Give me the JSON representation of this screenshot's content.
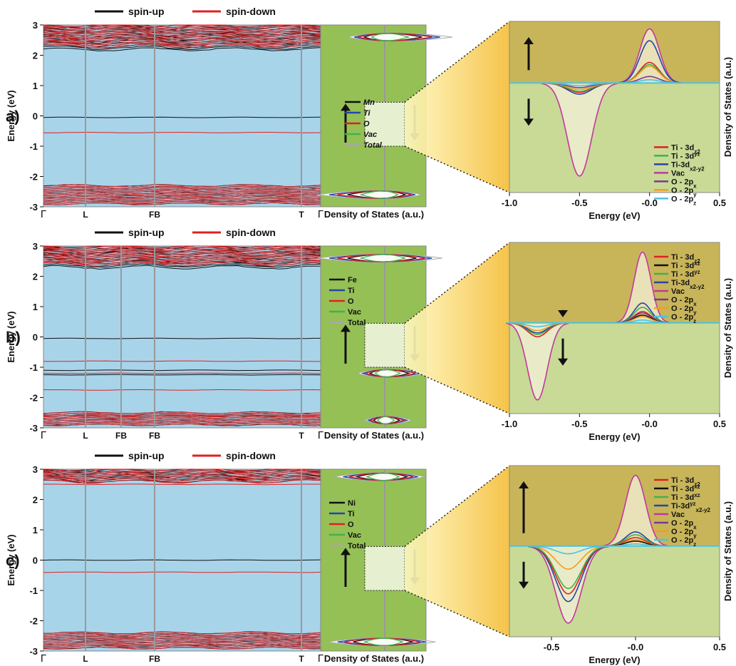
{
  "legend_top": {
    "spin_up": "spin-up",
    "spin_down": "spin-down"
  },
  "axis": {
    "band_ylabel": "Energy (eV)",
    "band_yticks": [
      "3",
      "2",
      "1",
      "0",
      "-1",
      "-2",
      "-3"
    ],
    "dos_xlabel": "Density of States (a.u.)",
    "zoom_xlabel": "Energy (eV)",
    "zoom_ylabel": "Density of States (a.u.)"
  },
  "colors": {
    "band_bg": "#a8d4ea",
    "dos_bg": "#95c055",
    "zoom_top": "#c8b55a",
    "zoom_bottom": "#c8da96",
    "spin_up": "#111111",
    "spin_down": "#e02020",
    "Mn": "#111111",
    "Fe": "#111111",
    "Ni": "#111111",
    "Ti": "#2546a8",
    "O": "#e02020",
    "Vac": "#3fb34a",
    "Total": "#a8a8a8",
    "Ti_3dz2": "#e02020",
    "Ti_3dxz": "#111111",
    "Ti_3dyz": "#3fb34a",
    "Ti_3dx2y2": "#2546a8",
    "Vac_p": "#c0399b",
    "O_2px": "#7a3a8c",
    "O_2py": "#f39c1f",
    "O_2pz": "#4cc3e0"
  },
  "chart_data": [
    {
      "panel": "a)",
      "type": "line",
      "subtype": "band_structure",
      "kpoints": [
        "Γ",
        "L",
        "FB",
        "T",
        "Γ"
      ],
      "ylim": [
        -3,
        3
      ],
      "ylabel": "Energy (eV)",
      "series": [
        {
          "name": "spin-up",
          "flat_bands_eV": [
            -0.05
          ],
          "valence_range_eV": [
            -2.9,
            -2.3
          ],
          "conduction_range_eV": [
            2.2,
            3.0
          ]
        },
        {
          "name": "spin-down",
          "flat_bands_eV": [
            -0.55
          ],
          "valence_range_eV": [
            -2.9,
            -2.3
          ],
          "conduction_range_eV": [
            2.3,
            3.0
          ]
        }
      ]
    },
    {
      "panel": "a)",
      "type": "area",
      "subtype": "total_dos",
      "xlabel": "Density of States (a.u.)",
      "legend": [
        {
          "key": "Mn",
          "label": "Mn"
        },
        {
          "key": "Ti",
          "label": "Ti"
        },
        {
          "key": "O",
          "label": "O"
        },
        {
          "key": "Vac",
          "label": "Vac"
        },
        {
          "key": "Total",
          "label": "Total"
        }
      ],
      "peaks": [
        {
          "energy_eV": 2.6,
          "up": 1.0,
          "down": 0.55
        },
        {
          "energy_eV": -2.6,
          "up": 0.55,
          "down": 1.0
        }
      ]
    },
    {
      "panel": "a)",
      "type": "area",
      "subtype": "projected_dos_zoom",
      "xlabel": "Energy (eV)",
      "ylabel": "Density of States (a.u.)",
      "xlim": [
        -1.0,
        0.5
      ],
      "xticks": [
        "-1.0",
        "-0.5",
        "-0.0",
        "0.5"
      ],
      "legend": [
        {
          "key": "Ti_3dz2",
          "base": "Ti - 3d",
          "sub": "z2"
        },
        {
          "key": "Ti_3dyz",
          "base": "Ti - 3d",
          "sup": "yz"
        },
        {
          "key": "Ti_3dx2y2",
          "base": "Ti-3d",
          "sub": "x2-y2"
        },
        {
          "key": "Vac_p",
          "base": "Vac"
        },
        {
          "key": "O_2px",
          "base": "O - 2p",
          "sub": "x"
        },
        {
          "key": "O_2py",
          "base": "O - 2p",
          "sub": "y"
        },
        {
          "key": "O_2pz",
          "base": "O - 2p",
          "sub": "z"
        }
      ],
      "up_peak": {
        "center_eV": 0.0,
        "width_eV": 0.07,
        "heights": {
          "Vac_p": 1.0,
          "Ti_3dx2y2": 0.78,
          "Ti_3dz2": 0.38,
          "Ti_3dyz": 0.34,
          "O_2py": 0.31,
          "O_2px": 0.12,
          "O_2pz": 0.06
        }
      },
      "down_peak": {
        "center_eV": -0.5,
        "width_eV": 0.085,
        "heights": {
          "Vac_p": 1.0,
          "Ti_3dx2y2": 0.12,
          "Ti_3dz2": 0.1,
          "Ti_3dyz": 0.09,
          "O_2py": 0.07,
          "O_2px": 0.05,
          "O_2pz": 0.03
        }
      }
    },
    {
      "panel": "b)",
      "type": "line",
      "subtype": "band_structure",
      "kpoints": [
        "Γ",
        "L",
        "FB",
        "FB",
        "T",
        "Γ"
      ],
      "ylim": [
        -3,
        3
      ],
      "ylabel": "Energy (eV)",
      "series": [
        {
          "name": "spin-up",
          "flat_bands_eV": [
            -0.05,
            -1.1,
            -1.25
          ],
          "valence_range_eV": [
            -2.9,
            -2.5
          ],
          "conduction_range_eV": [
            2.3,
            3.0
          ]
        },
        {
          "name": "spin-down",
          "flat_bands_eV": [
            -0.8,
            -1.2,
            -1.75,
            -2.6
          ],
          "valence_range_eV": [
            -2.9,
            -2.5
          ],
          "conduction_range_eV": [
            2.4,
            3.0
          ]
        }
      ]
    },
    {
      "panel": "b)",
      "type": "area",
      "subtype": "total_dos",
      "xlabel": "Density of States (a.u.)",
      "legend": [
        {
          "key": "Fe",
          "label": "Fe"
        },
        {
          "key": "Ti",
          "label": "Ti"
        },
        {
          "key": "O",
          "label": "O"
        },
        {
          "key": "Vac",
          "label": "Vac"
        },
        {
          "key": "Total",
          "label": "Total"
        }
      ],
      "peaks": [
        {
          "energy_eV": 2.6,
          "up": 0.85,
          "down": 1.0
        },
        {
          "energy_eV": -1.2,
          "up": 0.65,
          "down": 0.4
        },
        {
          "energy_eV": -2.75,
          "up": 0.4,
          "down": 0.3
        }
      ]
    },
    {
      "panel": "b)",
      "type": "area",
      "subtype": "projected_dos_zoom",
      "xlabel": "Energy (eV)",
      "ylabel": "Density of States (a.u.)",
      "xlim": [
        -1.0,
        0.5
      ],
      "xticks": [
        "-1.0",
        "-0.5",
        "-0.0",
        "0.5"
      ],
      "legend": [
        {
          "key": "Ti_3dz2",
          "base": "Ti - 3d",
          "sub": "z2"
        },
        {
          "key": "Ti_3dxz",
          "base": "Ti - 3d",
          "sup": "xz"
        },
        {
          "key": "Ti_3dyz",
          "base": "Ti - 3d",
          "sup": "yz"
        },
        {
          "key": "Ti_3dx2y2",
          "base": "Ti-3d",
          "sub": "x2-y2"
        },
        {
          "key": "Vac_p",
          "base": "Vac"
        },
        {
          "key": "O_2px",
          "base": "O - 2p",
          "sub": "x"
        },
        {
          "key": "O_2py",
          "base": "O - 2p",
          "sub": "y"
        },
        {
          "key": "O_2pz",
          "base": "O - 2p",
          "sub": "z"
        }
      ],
      "up_peak": {
        "center_eV": -0.05,
        "width_eV": 0.06,
        "heights": {
          "Vac_p": 1.0,
          "Ti_3dx2y2": 0.28,
          "Ti_3dyz": 0.22,
          "Ti_3dz2": 0.16,
          "O_2px": 0.14,
          "Ti_3dxz": 0.11,
          "O_2py": 0.09,
          "O_2pz": 0.04
        }
      },
      "down_peak": {
        "center_eV": -0.8,
        "width_eV": 0.07,
        "heights": {
          "Vac_p": 1.0,
          "Ti_3dz2": 0.18,
          "Ti_3dyz": 0.15,
          "Ti_3dx2y2": 0.13,
          "O_2py": 0.1,
          "O_2pz": 0.05
        }
      }
    },
    {
      "panel": "c)",
      "type": "line",
      "subtype": "band_structure",
      "kpoints": [
        "Γ",
        "L",
        "FB",
        "T",
        "Γ"
      ],
      "ylim": [
        -3,
        3
      ],
      "ylabel": "Energy (eV)",
      "series": [
        {
          "name": "spin-up",
          "flat_bands_eV": [
            0.0
          ],
          "valence_range_eV": [
            -2.9,
            -2.4
          ],
          "conduction_range_eV": [
            2.6,
            3.0
          ]
        },
        {
          "name": "spin-down",
          "flat_bands_eV": [
            -0.4,
            2.5
          ],
          "valence_range_eV": [
            -2.9,
            -2.4
          ],
          "conduction_range_eV": [
            2.6,
            3.0
          ]
        }
      ]
    },
    {
      "panel": "c)",
      "type": "area",
      "subtype": "total_dos",
      "xlabel": "Density of States (a.u.)",
      "legend": [
        {
          "key": "Ni",
          "label": "Ni"
        },
        {
          "key": "Ti",
          "label": "Ti"
        },
        {
          "key": "O",
          "label": "O"
        },
        {
          "key": "Vac",
          "label": "Vac"
        },
        {
          "key": "Total",
          "label": "Total"
        }
      ],
      "peaks": [
        {
          "energy_eV": 2.75,
          "up": 0.6,
          "down": 0.75
        },
        {
          "energy_eV": -2.7,
          "up": 0.75,
          "down": 0.85
        }
      ]
    },
    {
      "panel": "c)",
      "type": "area",
      "subtype": "projected_dos_zoom",
      "xlabel": "Energy (eV)",
      "ylabel": "Density of States (a.u.)",
      "xlim": [
        -0.75,
        0.5
      ],
      "xticks": [
        "-0.5",
        "-0.0",
        "0.5"
      ],
      "legend": [
        {
          "key": "Ti_3dz2",
          "base": "Ti - 3d",
          "sub": "z2"
        },
        {
          "key": "Ti_3dxz",
          "base": "Ti - 3d",
          "sup": "xz"
        },
        {
          "key": "Ti_3dyz",
          "base": "Ti - 3d",
          "sup": "xz"
        },
        {
          "key": "Ti_3dx2y2",
          "base": "Ti-3d",
          "sup": "yz",
          "sub": "x2-y2"
        },
        {
          "key": "Vac_p",
          "base": "Vac"
        },
        {
          "key": "O_2px",
          "base": "O - 2p",
          "sub": "x"
        },
        {
          "key": "O_2py",
          "base": "O - 2p",
          "sub": "y"
        },
        {
          "key": "O_2pz",
          "base": "O - 2p",
          "sub": "z"
        }
      ],
      "up_peak": {
        "center_eV": 0.0,
        "width_eV": 0.06,
        "heights": {
          "Vac_p": 1.0,
          "Ti_3dx2y2": 0.2,
          "Ti_3dyz": 0.16,
          "Ti_3dz2": 0.12,
          "O_2py": 0.09,
          "Ti_3dxz": 0.07,
          "O_2pz": 0.03
        }
      },
      "down_peak": {
        "center_eV": -0.4,
        "width_eV": 0.075,
        "heights": {
          "Vac_p": 1.0,
          "Ti_3dx2y2": 0.72,
          "Ti_3dz2": 0.62,
          "Ti_3dyz": 0.55,
          "O_2py": 0.3,
          "O_2pz": 0.1
        }
      }
    }
  ]
}
